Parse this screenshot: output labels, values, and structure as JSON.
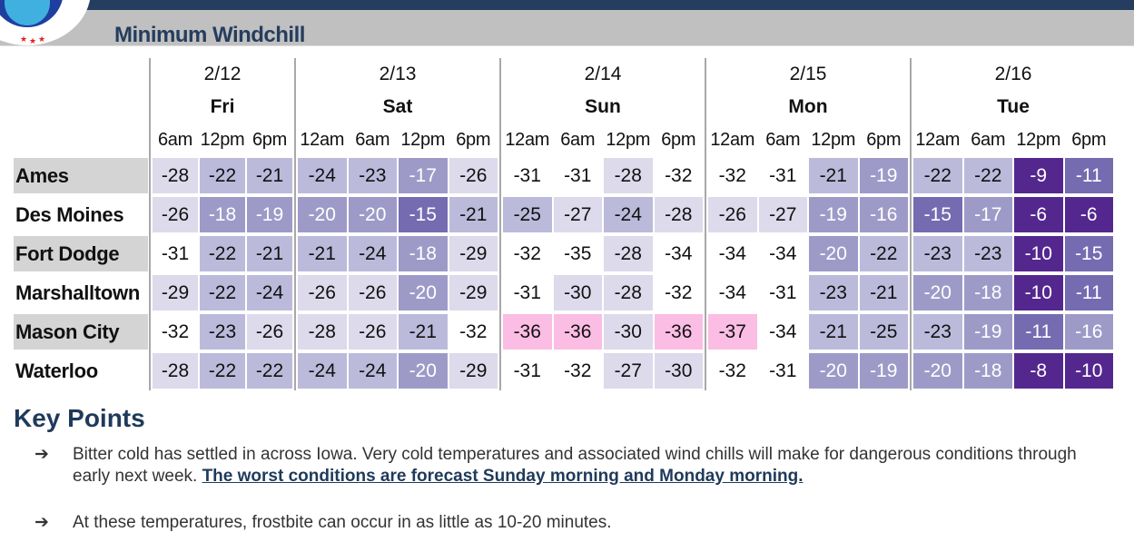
{
  "header": {
    "title": "Minimum Windchill"
  },
  "colors": {
    "banner": "#253d5e",
    "title_bar": "#c0c0c0",
    "scale": [
      {
        "max": -36,
        "bg": "#fbbde3",
        "fg": "#111111"
      },
      {
        "max": -31,
        "bg": "#ffffff",
        "fg": "#111111"
      },
      {
        "max": -26,
        "bg": "#dcdaeb",
        "fg": "#111111"
      },
      {
        "max": -21,
        "bg": "#bcbadb",
        "fg": "#111111"
      },
      {
        "max": -16,
        "bg": "#9e9ac8",
        "fg": "#ffffff"
      },
      {
        "max": -11,
        "bg": "#756bb1",
        "fg": "#ffffff"
      },
      {
        "max": 100,
        "bg": "#54278f",
        "fg": "#ffffff"
      }
    ]
  },
  "table": {
    "days": [
      {
        "date": "2/12",
        "day": "Fri",
        "times": [
          "6am",
          "12pm",
          "6pm"
        ]
      },
      {
        "date": "2/13",
        "day": "Sat",
        "times": [
          "12am",
          "6am",
          "12pm",
          "6pm"
        ]
      },
      {
        "date": "2/14",
        "day": "Sun",
        "times": [
          "12am",
          "6am",
          "12pm",
          "6pm"
        ]
      },
      {
        "date": "2/15",
        "day": "Mon",
        "times": [
          "12am",
          "6am",
          "12pm",
          "6pm"
        ]
      },
      {
        "date": "2/16",
        "day": "Tue",
        "times": [
          "12am",
          "6am",
          "12pm",
          "6pm"
        ]
      }
    ],
    "rows": [
      {
        "city": "Ames",
        "values": [
          -28,
          -22,
          -21,
          -24,
          -23,
          -17,
          -26,
          -31,
          -31,
          -28,
          -32,
          -32,
          -31,
          -21,
          -19,
          -22,
          -22,
          -9,
          -11
        ]
      },
      {
        "city": "Des Moines",
        "values": [
          -26,
          -18,
          -19,
          -20,
          -20,
          -15,
          -21,
          -25,
          -27,
          -24,
          -28,
          -26,
          -27,
          -19,
          -16,
          -15,
          -17,
          -6,
          -6
        ]
      },
      {
        "city": "Fort Dodge",
        "values": [
          -31,
          -22,
          -21,
          -21,
          -24,
          -18,
          -29,
          -32,
          -35,
          -28,
          -34,
          -34,
          -34,
          -20,
          -22,
          -23,
          -23,
          -10,
          -15
        ]
      },
      {
        "city": "Marshalltown",
        "values": [
          -29,
          -22,
          -24,
          -26,
          -26,
          -20,
          -29,
          -31,
          -30,
          -28,
          -32,
          -34,
          -31,
          -23,
          -21,
          -20,
          -18,
          -10,
          -11
        ]
      },
      {
        "city": "Mason City",
        "values": [
          -32,
          -23,
          -26,
          -28,
          -26,
          -21,
          -32,
          -36,
          -36,
          -30,
          -36,
          -37,
          -34,
          -21,
          -25,
          -23,
          -19,
          -11,
          -16
        ]
      },
      {
        "city": "Waterloo",
        "values": [
          -28,
          -22,
          -22,
          -24,
          -24,
          -20,
          -29,
          -31,
          -32,
          -27,
          -30,
          -32,
          -31,
          -20,
          -19,
          -20,
          -18,
          -8,
          -10
        ]
      }
    ]
  },
  "key_points": {
    "heading": "Key Points",
    "bullet_icon": "right-arrow-icon",
    "bullets": [
      {
        "text": "Bitter cold has settled in across Iowa. Very cold temperatures and associated wind chills will make for dangerous conditions through early next week. ",
        "emphasis": "The worst conditions are forecast Sunday morning and Monday morning."
      },
      {
        "text": "At these temperatures, frostbite can occur in as little as 10-20 minutes.",
        "emphasis": ""
      }
    ]
  }
}
